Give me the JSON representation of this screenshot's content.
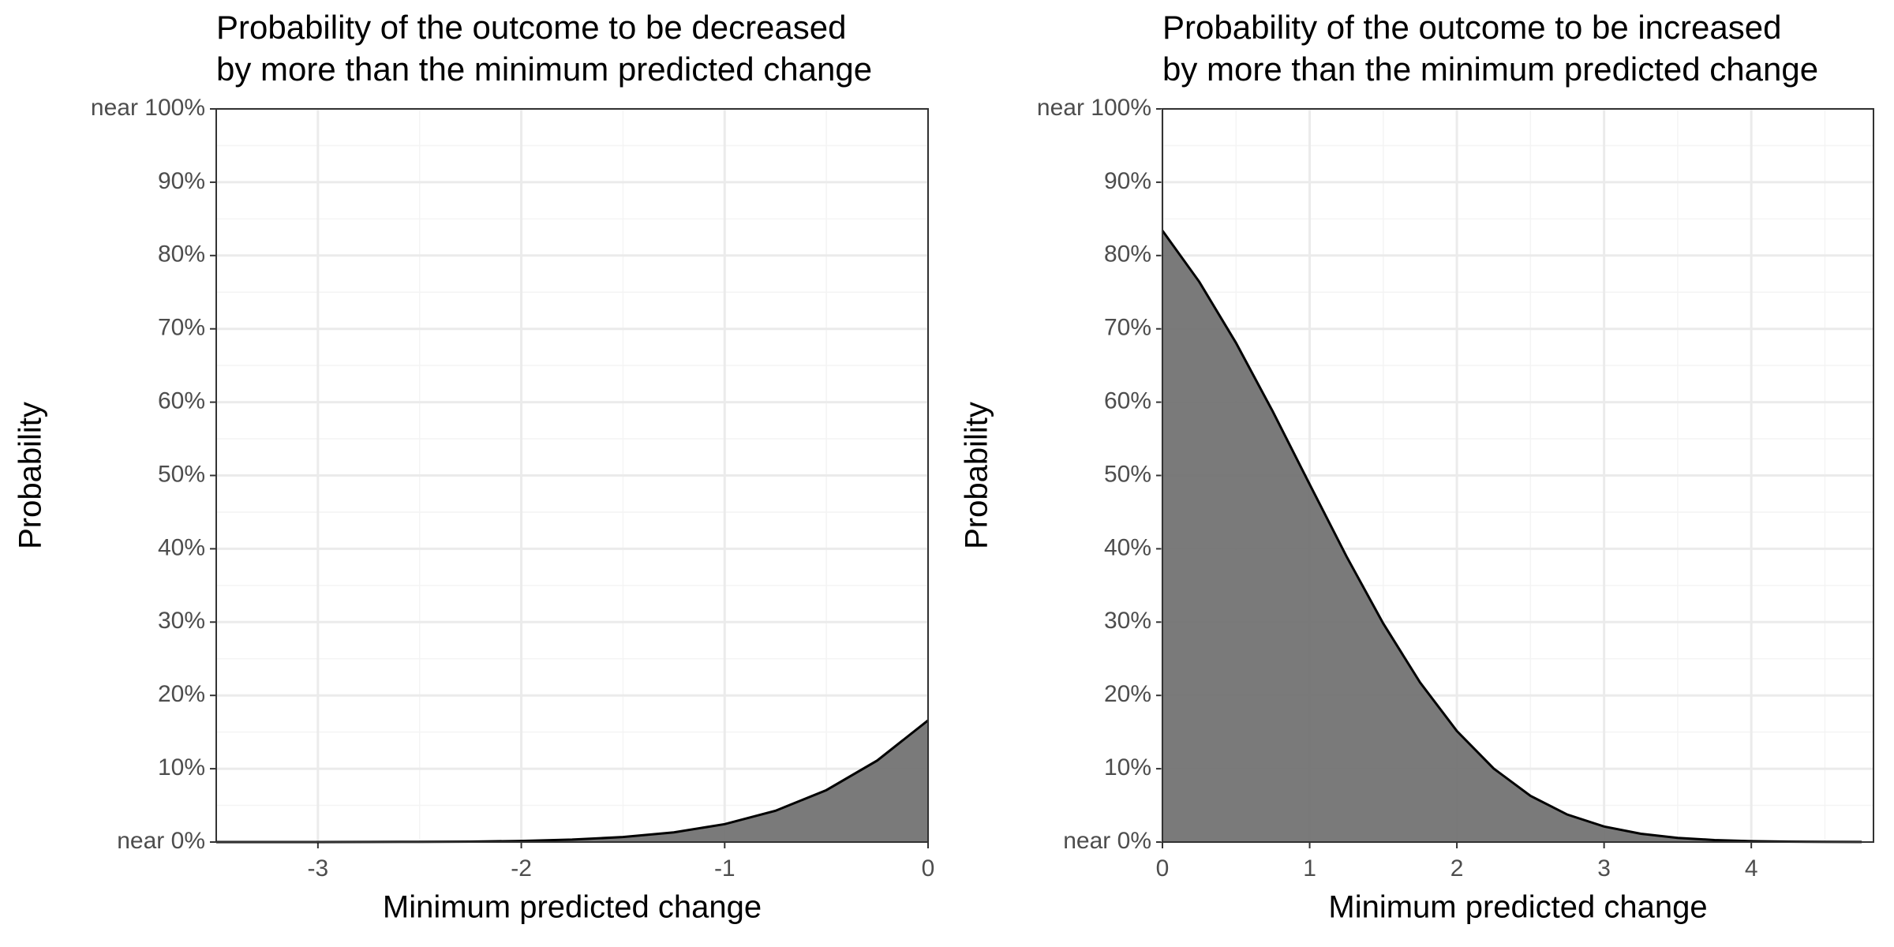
{
  "chart_data": [
    {
      "type": "area",
      "title": [
        "Probability of the outcome to be decreased",
        "by more than the minimum predicted change"
      ],
      "x_label": "Minimum predicted change",
      "y_label": "Probability",
      "x": [
        -3.5,
        -3.25,
        -3,
        -2.75,
        -2.5,
        -2.25,
        -2,
        -1.75,
        -1.5,
        -1.25,
        -1,
        -0.75,
        -0.5,
        -0.25,
        0
      ],
      "values": [
        0,
        0,
        0,
        0.01,
        0.03,
        0.06,
        0.15,
        0.33,
        0.68,
        1.32,
        2.44,
        4.27,
        7.08,
        11.12,
        16.6
      ],
      "color": "#737373",
      "grid": true,
      "xlim": [
        -3.5,
        0
      ],
      "xticks": [
        -3,
        -2,
        -1,
        0
      ],
      "ylim": [
        0,
        100
      ],
      "yticks": [
        {
          "value": 0,
          "label": "near 0%"
        },
        {
          "value": 10,
          "label": "10%"
        },
        {
          "value": 20,
          "label": "20%"
        },
        {
          "value": 30,
          "label": "30%"
        },
        {
          "value": 40,
          "label": "40%"
        },
        {
          "value": 50,
          "label": "50%"
        },
        {
          "value": 60,
          "label": "60%"
        },
        {
          "value": 70,
          "label": "70%"
        },
        {
          "value": 80,
          "label": "80%"
        },
        {
          "value": 90,
          "label": "90%"
        },
        {
          "value": 100,
          "label": "near 100%"
        }
      ]
    },
    {
      "type": "area",
      "title": [
        "Probability of the outcome to be increased",
        "by more than the minimum predicted change"
      ],
      "x_label": "Minimum predicted change",
      "y_label": "Probability",
      "x": [
        0,
        0.25,
        0.5,
        0.75,
        1,
        1.25,
        1.5,
        1.75,
        2,
        2.25,
        2.5,
        2.75,
        3,
        3.25,
        3.5,
        3.75,
        4,
        4.25,
        4.5,
        4.75
      ],
      "values": [
        83.4,
        76.42,
        68.08,
        58.71,
        48.8,
        38.97,
        29.81,
        21.77,
        15.15,
        10.03,
        6.3,
        3.75,
        2.12,
        1.13,
        0.57,
        0.27,
        0.12,
        0.05,
        0.02,
        0.01
      ],
      "color": "#737373",
      "grid": true,
      "xlim": [
        0,
        4.83
      ],
      "xticks": [
        0,
        1,
        2,
        3,
        4
      ],
      "ylim": [
        0,
        100
      ],
      "yticks": [
        {
          "value": 0,
          "label": "near 0%"
        },
        {
          "value": 10,
          "label": "10%"
        },
        {
          "value": 20,
          "label": "20%"
        },
        {
          "value": 30,
          "label": "30%"
        },
        {
          "value": 40,
          "label": "40%"
        },
        {
          "value": 50,
          "label": "50%"
        },
        {
          "value": 60,
          "label": "60%"
        },
        {
          "value": 70,
          "label": "70%"
        },
        {
          "value": 80,
          "label": "80%"
        },
        {
          "value": 90,
          "label": "90%"
        },
        {
          "value": 100,
          "label": "near 100%"
        }
      ]
    }
  ]
}
